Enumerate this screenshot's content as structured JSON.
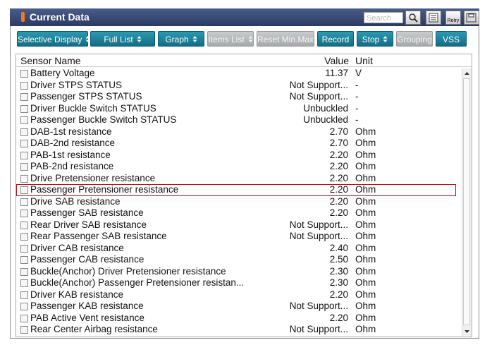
{
  "header": {
    "title": "Current Data",
    "search_placeholder": "Search",
    "retry": "Retry"
  },
  "toolbar": [
    {
      "label": "Selective Display",
      "dropdown": true,
      "disabled": false
    },
    {
      "label": "Full List",
      "dropdown": true,
      "disabled": false
    },
    {
      "label": "Graph",
      "dropdown": true,
      "disabled": false
    },
    {
      "label": "Items List",
      "dropdown": true,
      "disabled": true
    },
    {
      "label": "Reset Min.Max",
      "dropdown": false,
      "disabled": true
    },
    {
      "label": "Record",
      "dropdown": false,
      "disabled": false
    },
    {
      "label": "Stop",
      "dropdown": true,
      "disabled": false
    },
    {
      "label": "Grouping",
      "dropdown": false,
      "disabled": true
    },
    {
      "label": "VSS",
      "dropdown": false,
      "disabled": false
    }
  ],
  "table": {
    "columns": [
      "Sensor Name",
      "Value",
      "Unit"
    ],
    "rows": [
      [
        "Battery Voltage",
        "11.37",
        "V"
      ],
      [
        "Driver STPS STATUS",
        "Not Support...",
        "-"
      ],
      [
        "Passenger STPS STATUS",
        "Not Support...",
        "-"
      ],
      [
        "Driver Buckle Switch STATUS",
        "Unbuckled",
        "-"
      ],
      [
        "Passenger Buckle Switch STATUS",
        "Unbuckled",
        "-"
      ],
      [
        "DAB-1st resistance",
        "2.70",
        "Ohm"
      ],
      [
        "DAB-2nd resistance",
        "2.70",
        "Ohm"
      ],
      [
        "PAB-1st resistance",
        "2.20",
        "Ohm"
      ],
      [
        "PAB-2nd resistance",
        "2.20",
        "Ohm"
      ],
      [
        "Drive Pretensioner resistance",
        "2.20",
        "Ohm"
      ],
      [
        "Passenger Pretensioner resistance",
        "2.20",
        "Ohm"
      ],
      [
        "Drive SAB resistance",
        "2.20",
        "Ohm"
      ],
      [
        "Passenger SAB resistance",
        "2.20",
        "Ohm"
      ],
      [
        "Rear Driver SAB resistance",
        "Not Support...",
        "Ohm"
      ],
      [
        "Rear Passenger SAB resistance",
        "Not Support...",
        "Ohm"
      ],
      [
        "Driver CAB resistance",
        "2.40",
        "Ohm"
      ],
      [
        "Passenger CAB resistance",
        "2.50",
        "Ohm"
      ],
      [
        "Buckle(Anchor) Driver Pretensioner resistance",
        "2.30",
        "Ohm"
      ],
      [
        "Buckle(Anchor) Passenger Pretensioner resistan...",
        "2.30",
        "Ohm"
      ],
      [
        "Driver KAB resistance",
        "2.20",
        "Ohm"
      ],
      [
        "Passenger KAB resistance",
        "Not Support...",
        "Ohm"
      ],
      [
        "PAB Active Vent resistance",
        "2.20",
        "Ohm"
      ],
      [
        "Rear Center Airbag resistance",
        "Not Support...",
        "Ohm"
      ]
    ]
  }
}
